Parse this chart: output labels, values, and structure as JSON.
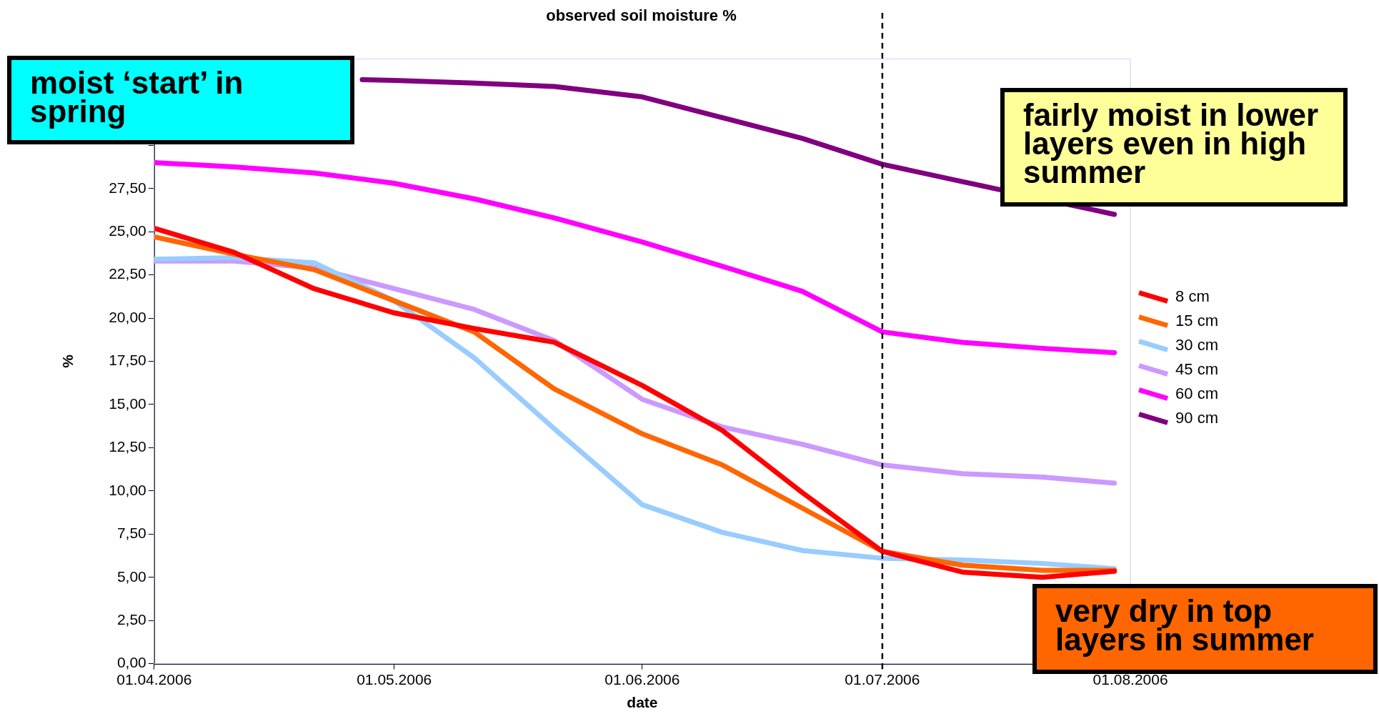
{
  "chart_data": {
    "type": "line",
    "title": "observed soil moisture %",
    "xlabel": "date",
    "ylabel": "%",
    "x": [
      "2006-04-01",
      "2006-04-11",
      "2006-04-21",
      "2006-05-01",
      "2006-05-11",
      "2006-05-21",
      "2006-06-01",
      "2006-06-11",
      "2006-06-21",
      "2006-07-01",
      "2006-07-11",
      "2006-07-21",
      "2006-07-30"
    ],
    "series": [
      {
        "name": "8 cm",
        "color": "#ff0000",
        "values": [
          25.2,
          23.8,
          21.7,
          20.3,
          19.4,
          18.6,
          16.1,
          13.5,
          9.9,
          6.5,
          5.3,
          5.0,
          5.35
        ]
      },
      {
        "name": "15 cm",
        "color": "#ff6600",
        "values": [
          24.7,
          23.7,
          22.8,
          21.0,
          19.2,
          15.9,
          13.3,
          11.5,
          9.0,
          6.5,
          5.7,
          5.4,
          5.4
        ]
      },
      {
        "name": "30 cm",
        "color": "#99ccff",
        "values": [
          23.4,
          23.5,
          23.2,
          21.0,
          17.7,
          13.6,
          9.2,
          7.6,
          6.55,
          6.1,
          6.0,
          5.8,
          5.5
        ]
      },
      {
        "name": "45 cm",
        "color": "#cc99ff",
        "values": [
          23.3,
          23.3,
          22.9,
          21.7,
          20.5,
          18.7,
          15.3,
          13.7,
          12.7,
          11.5,
          11.0,
          10.8,
          10.45
        ]
      },
      {
        "name": "60 cm",
        "color": "#ff00ff",
        "values": [
          29.0,
          28.75,
          28.4,
          27.8,
          26.9,
          25.8,
          24.4,
          23.0,
          21.55,
          19.2,
          18.6,
          18.25,
          18.0
        ]
      },
      {
        "name": "90 cm",
        "color": "#800080",
        "x": [
          "2006-04-27",
          "2006-05-01",
          "2006-05-11",
          "2006-05-21",
          "2006-06-01",
          "2006-06-11",
          "2006-06-21",
          "2006-07-01",
          "2006-07-11",
          "2006-07-30"
        ],
        "values": [
          33.8,
          33.75,
          33.6,
          33.4,
          32.8,
          31.6,
          30.4,
          28.9,
          27.9,
          26.0
        ]
      }
    ],
    "xlim": [
      "2006-04-01",
      "2006-08-01"
    ],
    "xticks": [
      {
        "value": "2006-04-01",
        "label": "01.04.2006"
      },
      {
        "value": "2006-05-01",
        "label": "01.05.2006"
      },
      {
        "value": "2006-06-01",
        "label": "01.06.2006"
      },
      {
        "value": "2006-07-01",
        "label": "01.07.2006"
      },
      {
        "value": "2006-08-01",
        "label": "01.08.2006"
      }
    ],
    "ylim": [
      0,
      35
    ],
    "yticks": [
      {
        "value": 0,
        "label": "0,00"
      },
      {
        "value": 2.5,
        "label": "2,50"
      },
      {
        "value": 5,
        "label": "5,00"
      },
      {
        "value": 7.5,
        "label": "7,50"
      },
      {
        "value": 10,
        "label": "10,00"
      },
      {
        "value": 12.5,
        "label": "12,50"
      },
      {
        "value": 15,
        "label": "15,00"
      },
      {
        "value": 17.5,
        "label": "17,50"
      },
      {
        "value": 20,
        "label": "20,00"
      },
      {
        "value": 22.5,
        "label": "22,50"
      },
      {
        "value": 25,
        "label": "25,00"
      },
      {
        "value": 27.5,
        "label": "27,50"
      },
      {
        "value": 30,
        "label": null
      },
      {
        "value": 32.5,
        "label": null
      },
      {
        "value": 35,
        "label": null
      }
    ],
    "ref_lines": [
      {
        "axis": "x",
        "value": "2006-07-01",
        "color": "#000000",
        "line_style": "dashed"
      }
    ],
    "annotations": [
      "moist ‘start’ in spring",
      "fairly moist in lower layers even in high summer",
      "very dry in top layers in summer"
    ],
    "legend": "right",
    "grid": false,
    "marker": "none",
    "line_style": "solid"
  }
}
